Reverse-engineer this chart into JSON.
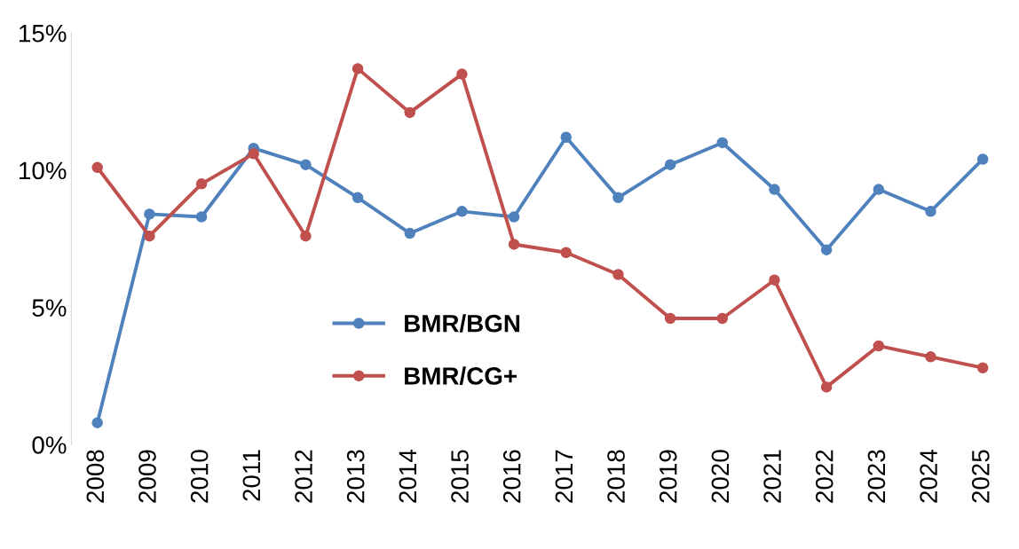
{
  "chart_data": {
    "type": "line",
    "categories": [
      "2008",
      "2009",
      "2010",
      "2011",
      "2012",
      "2013",
      "2014",
      "2015",
      "2016",
      "2017",
      "2018",
      "2019",
      "2020",
      "2021",
      "2022",
      "2023",
      "2024",
      "2025"
    ],
    "series": [
      {
        "name": "BMR/BGN",
        "color": "#4f81bd",
        "values": [
          0.8,
          8.4,
          8.3,
          10.8,
          10.2,
          9.0,
          7.7,
          8.5,
          8.3,
          11.2,
          9.0,
          10.2,
          11.0,
          9.3,
          7.1,
          9.3,
          8.5,
          10.4
        ]
      },
      {
        "name": "BMR/CG+",
        "color": "#c0504d",
        "values": [
          10.1,
          7.6,
          9.5,
          10.6,
          7.6,
          13.7,
          12.1,
          13.5,
          7.3,
          7.0,
          6.2,
          4.6,
          4.6,
          6.0,
          2.1,
          3.6,
          3.2,
          2.8
        ]
      }
    ],
    "ylim": [
      0,
      15
    ],
    "yticks": [
      {
        "value": 0,
        "label": "0%"
      },
      {
        "value": 5,
        "label": "5%"
      },
      {
        "value": 10,
        "label": "10%"
      },
      {
        "value": 15,
        "label": "15%"
      }
    ],
    "grid": false,
    "legend": "bottom",
    "marker": "circle",
    "line_style": "solid"
  }
}
